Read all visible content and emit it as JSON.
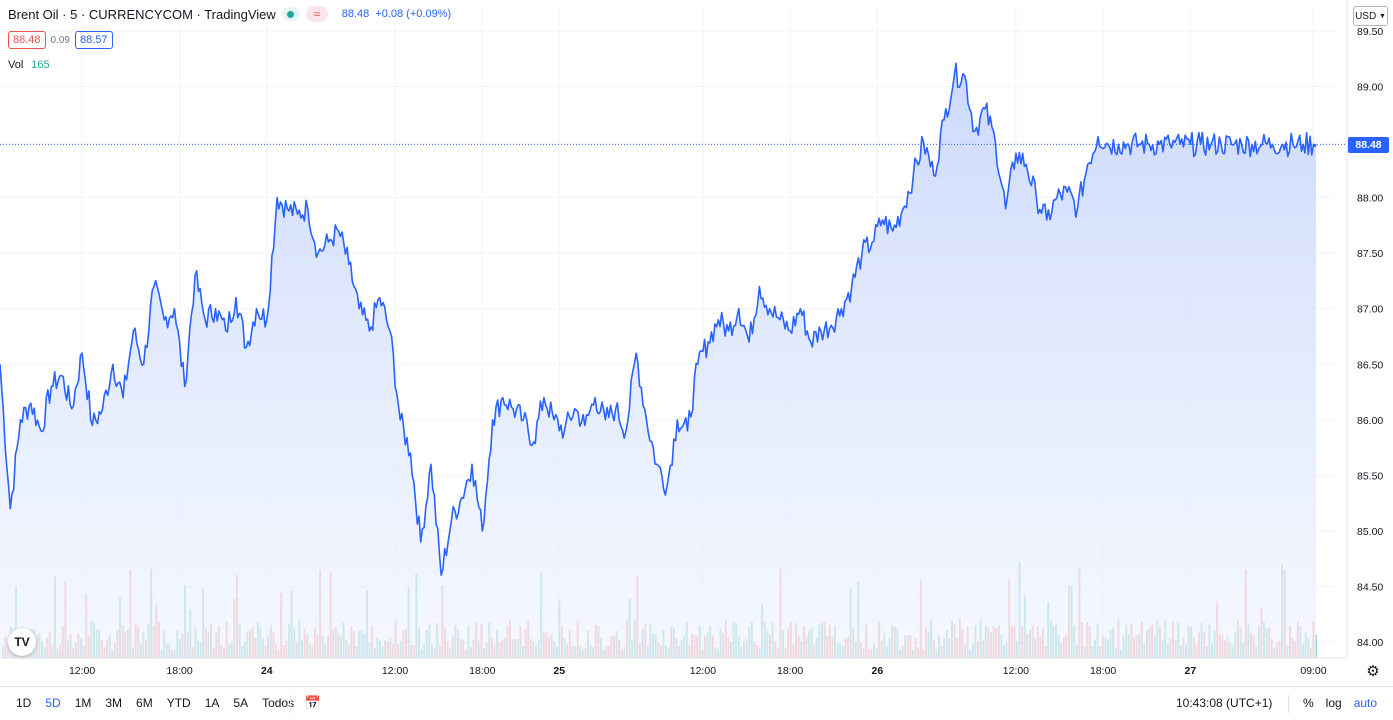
{
  "legend": {
    "symbol": "Brent Oil · 5 · CURRENCYCOM · TradingView",
    "wave_glyph": "≈",
    "last_price": "88.48",
    "change": "+0.08 (+0.09%)",
    "bid": "88.48",
    "spread": "0.09",
    "ask": "88.57",
    "volume_label": "Vol",
    "volume_value": "165"
  },
  "currency": "USD",
  "last_label": "88.48",
  "toolbar": {
    "ranges": [
      "1D",
      "5D",
      "1M",
      "3M",
      "6M",
      "YTD",
      "1A",
      "5A",
      "Todos"
    ],
    "active_range": "5D",
    "clock": "10:43:08 (UTC+1)",
    "percent": "%",
    "log": "log",
    "auto": "auto"
  },
  "icons": {
    "logo": "tradingview-logo-icon",
    "calendar": "calendar-range-icon",
    "settings": "gear-icon"
  },
  "colors": {
    "line": "#2962ff",
    "area_top": "#c7d6fb",
    "vol_up": "#26a69a",
    "vol_down": "#ef5350"
  },
  "chart_data": {
    "type": "area",
    "title": "Brent Oil · 5 · CURRENCYCOM · TradingView",
    "ylim": [
      84.0,
      89.5
    ],
    "y_ticks": [
      "89.50",
      "89.00",
      "88.50",
      "88.00",
      "87.50",
      "87.00",
      "86.50",
      "86.00",
      "85.50",
      "85.00",
      "84.50",
      "84.00"
    ],
    "x_ticks": [
      {
        "label": "12:00",
        "x": 16
      },
      {
        "label": "18:00",
        "x": 35
      },
      {
        "label": "24",
        "x": 52
      },
      {
        "label": "12:00",
        "x": 77
      },
      {
        "label": "18:00",
        "x": 94
      },
      {
        "label": "25",
        "x": 109
      },
      {
        "label": "12:00",
        "x": 137
      },
      {
        "label": "18:00",
        "x": 154
      },
      {
        "label": "26",
        "x": 171
      },
      {
        "label": "12:00",
        "x": 198
      },
      {
        "label": "18:00",
        "x": 215
      },
      {
        "label": "27",
        "x": 232
      },
      {
        "label": "09:00",
        "x": 256
      }
    ],
    "last_price": 88.48,
    "series": [
      {
        "name": "Price",
        "x": [
          0,
          2,
          4,
          6,
          8,
          10,
          12,
          14,
          16,
          18,
          20,
          22,
          24,
          26,
          28,
          30,
          32,
          34,
          36,
          38,
          40,
          42,
          44,
          46,
          48,
          50,
          52,
          54,
          56,
          58,
          60,
          62,
          64,
          66,
          68,
          70,
          72,
          74,
          76,
          78,
          80,
          82,
          84,
          86,
          88,
          90,
          92,
          94,
          96,
          98,
          100,
          102,
          104,
          106,
          108,
          110,
          112,
          114,
          116,
          118,
          120,
          122,
          124,
          126,
          128,
          130,
          132,
          134,
          136,
          138,
          140,
          142,
          144,
          146,
          148,
          150,
          152,
          154,
          156,
          158,
          160,
          162,
          164,
          166,
          168,
          170,
          172,
          174,
          176,
          178,
          180,
          182,
          184,
          186,
          188,
          190,
          192,
          194,
          196,
          198,
          200,
          202,
          204,
          206,
          208,
          210,
          212,
          214,
          216,
          218,
          220,
          222,
          224,
          226,
          228,
          230,
          232,
          234,
          236,
          238,
          240,
          242,
          244,
          246,
          248,
          250,
          252,
          254,
          256,
          258,
          260
        ],
        "values": [
          86.5,
          85.2,
          86.0,
          86.15,
          85.9,
          86.3,
          86.4,
          86.1,
          86.6,
          85.95,
          86.1,
          86.5,
          86.2,
          86.8,
          86.5,
          87.2,
          86.9,
          87.0,
          86.3,
          87.3,
          86.9,
          87.0,
          86.8,
          87.1,
          86.65,
          87.0,
          86.9,
          88.0,
          87.9,
          87.85,
          87.9,
          87.5,
          87.6,
          87.7,
          87.4,
          87.0,
          86.8,
          87.1,
          86.8,
          86.0,
          85.7,
          84.9,
          85.6,
          84.6,
          85.1,
          85.3,
          85.6,
          85.0,
          86.0,
          86.2,
          86.1,
          86.0,
          85.8,
          86.2,
          86.0,
          85.9,
          86.1,
          85.95,
          86.2,
          86.0,
          86.1,
          85.9,
          86.6,
          86.0,
          85.6,
          85.4,
          86.0,
          85.9,
          86.5,
          86.7,
          86.9,
          86.8,
          87.0,
          86.7,
          87.2,
          87.0,
          86.9,
          86.8,
          87.0,
          86.7,
          86.8,
          86.85,
          87.0,
          87.2,
          87.5,
          87.6,
          87.8,
          87.7,
          87.9,
          88.2,
          88.5,
          88.2,
          88.7,
          89.1,
          89.1,
          88.6,
          88.8,
          88.5,
          87.9,
          88.4,
          88.3,
          88.0,
          87.8,
          88.0,
          88.05,
          87.9,
          88.3,
          88.55,
          88.48,
          88.48,
          88.48,
          88.48,
          88.48,
          88.48,
          88.48,
          88.48,
          88.48,
          88.48,
          88.48,
          88.48,
          88.48,
          88.48,
          88.48,
          88.48,
          88.48,
          88.48,
          88.48,
          88.48,
          88.48,
          88.48,
          88.48
        ]
      }
    ],
    "grid": true,
    "legend_position": "top-left"
  }
}
